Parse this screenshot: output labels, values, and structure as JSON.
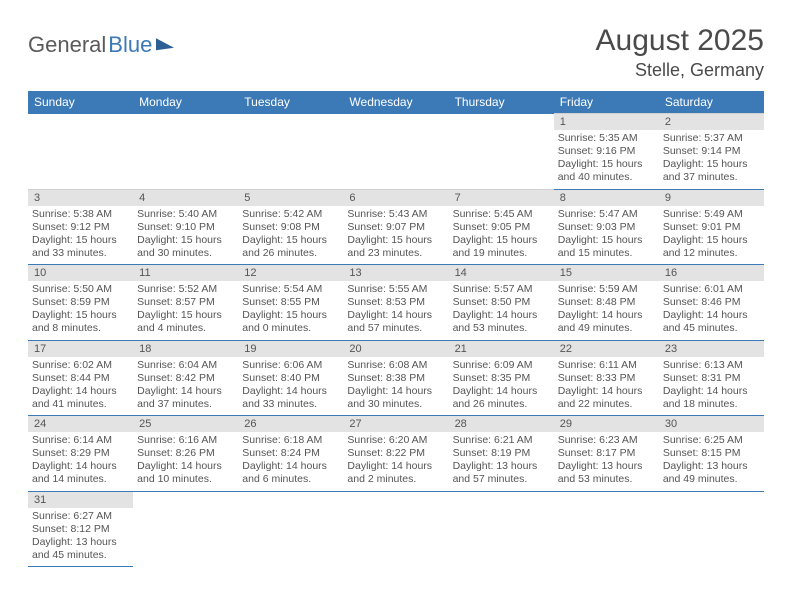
{
  "logo": {
    "part1": "General",
    "part2": "Blue"
  },
  "title": "August 2025",
  "location": "Stelle, Germany",
  "colors": {
    "header_bg": "#3b79b7",
    "header_text": "#ffffff",
    "daynum_bg": "#e3e3e3",
    "row_divider": "#3b79b7",
    "text": "#555555",
    "page_bg": "#ffffff"
  },
  "typography": {
    "title_fontsize": 30,
    "location_fontsize": 18,
    "dow_fontsize": 12,
    "cell_fontsize": 10.5
  },
  "days_of_week": [
    "Sunday",
    "Monday",
    "Tuesday",
    "Wednesday",
    "Thursday",
    "Friday",
    "Saturday"
  ],
  "weeks": [
    [
      null,
      null,
      null,
      null,
      null,
      {
        "n": "1",
        "sunrise": "Sunrise: 5:35 AM",
        "sunset": "Sunset: 9:16 PM",
        "day1": "Daylight: 15 hours",
        "day2": "and 40 minutes."
      },
      {
        "n": "2",
        "sunrise": "Sunrise: 5:37 AM",
        "sunset": "Sunset: 9:14 PM",
        "day1": "Daylight: 15 hours",
        "day2": "and 37 minutes."
      }
    ],
    [
      {
        "n": "3",
        "sunrise": "Sunrise: 5:38 AM",
        "sunset": "Sunset: 9:12 PM",
        "day1": "Daylight: 15 hours",
        "day2": "and 33 minutes."
      },
      {
        "n": "4",
        "sunrise": "Sunrise: 5:40 AM",
        "sunset": "Sunset: 9:10 PM",
        "day1": "Daylight: 15 hours",
        "day2": "and 30 minutes."
      },
      {
        "n": "5",
        "sunrise": "Sunrise: 5:42 AM",
        "sunset": "Sunset: 9:08 PM",
        "day1": "Daylight: 15 hours",
        "day2": "and 26 minutes."
      },
      {
        "n": "6",
        "sunrise": "Sunrise: 5:43 AM",
        "sunset": "Sunset: 9:07 PM",
        "day1": "Daylight: 15 hours",
        "day2": "and 23 minutes."
      },
      {
        "n": "7",
        "sunrise": "Sunrise: 5:45 AM",
        "sunset": "Sunset: 9:05 PM",
        "day1": "Daylight: 15 hours",
        "day2": "and 19 minutes."
      },
      {
        "n": "8",
        "sunrise": "Sunrise: 5:47 AM",
        "sunset": "Sunset: 9:03 PM",
        "day1": "Daylight: 15 hours",
        "day2": "and 15 minutes."
      },
      {
        "n": "9",
        "sunrise": "Sunrise: 5:49 AM",
        "sunset": "Sunset: 9:01 PM",
        "day1": "Daylight: 15 hours",
        "day2": "and 12 minutes."
      }
    ],
    [
      {
        "n": "10",
        "sunrise": "Sunrise: 5:50 AM",
        "sunset": "Sunset: 8:59 PM",
        "day1": "Daylight: 15 hours",
        "day2": "and 8 minutes."
      },
      {
        "n": "11",
        "sunrise": "Sunrise: 5:52 AM",
        "sunset": "Sunset: 8:57 PM",
        "day1": "Daylight: 15 hours",
        "day2": "and 4 minutes."
      },
      {
        "n": "12",
        "sunrise": "Sunrise: 5:54 AM",
        "sunset": "Sunset: 8:55 PM",
        "day1": "Daylight: 15 hours",
        "day2": "and 0 minutes."
      },
      {
        "n": "13",
        "sunrise": "Sunrise: 5:55 AM",
        "sunset": "Sunset: 8:53 PM",
        "day1": "Daylight: 14 hours",
        "day2": "and 57 minutes."
      },
      {
        "n": "14",
        "sunrise": "Sunrise: 5:57 AM",
        "sunset": "Sunset: 8:50 PM",
        "day1": "Daylight: 14 hours",
        "day2": "and 53 minutes."
      },
      {
        "n": "15",
        "sunrise": "Sunrise: 5:59 AM",
        "sunset": "Sunset: 8:48 PM",
        "day1": "Daylight: 14 hours",
        "day2": "and 49 minutes."
      },
      {
        "n": "16",
        "sunrise": "Sunrise: 6:01 AM",
        "sunset": "Sunset: 8:46 PM",
        "day1": "Daylight: 14 hours",
        "day2": "and 45 minutes."
      }
    ],
    [
      {
        "n": "17",
        "sunrise": "Sunrise: 6:02 AM",
        "sunset": "Sunset: 8:44 PM",
        "day1": "Daylight: 14 hours",
        "day2": "and 41 minutes."
      },
      {
        "n": "18",
        "sunrise": "Sunrise: 6:04 AM",
        "sunset": "Sunset: 8:42 PM",
        "day1": "Daylight: 14 hours",
        "day2": "and 37 minutes."
      },
      {
        "n": "19",
        "sunrise": "Sunrise: 6:06 AM",
        "sunset": "Sunset: 8:40 PM",
        "day1": "Daylight: 14 hours",
        "day2": "and 33 minutes."
      },
      {
        "n": "20",
        "sunrise": "Sunrise: 6:08 AM",
        "sunset": "Sunset: 8:38 PM",
        "day1": "Daylight: 14 hours",
        "day2": "and 30 minutes."
      },
      {
        "n": "21",
        "sunrise": "Sunrise: 6:09 AM",
        "sunset": "Sunset: 8:35 PM",
        "day1": "Daylight: 14 hours",
        "day2": "and 26 minutes."
      },
      {
        "n": "22",
        "sunrise": "Sunrise: 6:11 AM",
        "sunset": "Sunset: 8:33 PM",
        "day1": "Daylight: 14 hours",
        "day2": "and 22 minutes."
      },
      {
        "n": "23",
        "sunrise": "Sunrise: 6:13 AM",
        "sunset": "Sunset: 8:31 PM",
        "day1": "Daylight: 14 hours",
        "day2": "and 18 minutes."
      }
    ],
    [
      {
        "n": "24",
        "sunrise": "Sunrise: 6:14 AM",
        "sunset": "Sunset: 8:29 PM",
        "day1": "Daylight: 14 hours",
        "day2": "and 14 minutes."
      },
      {
        "n": "25",
        "sunrise": "Sunrise: 6:16 AM",
        "sunset": "Sunset: 8:26 PM",
        "day1": "Daylight: 14 hours",
        "day2": "and 10 minutes."
      },
      {
        "n": "26",
        "sunrise": "Sunrise: 6:18 AM",
        "sunset": "Sunset: 8:24 PM",
        "day1": "Daylight: 14 hours",
        "day2": "and 6 minutes."
      },
      {
        "n": "27",
        "sunrise": "Sunrise: 6:20 AM",
        "sunset": "Sunset: 8:22 PM",
        "day1": "Daylight: 14 hours",
        "day2": "and 2 minutes."
      },
      {
        "n": "28",
        "sunrise": "Sunrise: 6:21 AM",
        "sunset": "Sunset: 8:19 PM",
        "day1": "Daylight: 13 hours",
        "day2": "and 57 minutes."
      },
      {
        "n": "29",
        "sunrise": "Sunrise: 6:23 AM",
        "sunset": "Sunset: 8:17 PM",
        "day1": "Daylight: 13 hours",
        "day2": "and 53 minutes."
      },
      {
        "n": "30",
        "sunrise": "Sunrise: 6:25 AM",
        "sunset": "Sunset: 8:15 PM",
        "day1": "Daylight: 13 hours",
        "day2": "and 49 minutes."
      }
    ],
    [
      {
        "n": "31",
        "sunrise": "Sunrise: 6:27 AM",
        "sunset": "Sunset: 8:12 PM",
        "day1": "Daylight: 13 hours",
        "day2": "and 45 minutes."
      },
      null,
      null,
      null,
      null,
      null,
      null
    ]
  ]
}
